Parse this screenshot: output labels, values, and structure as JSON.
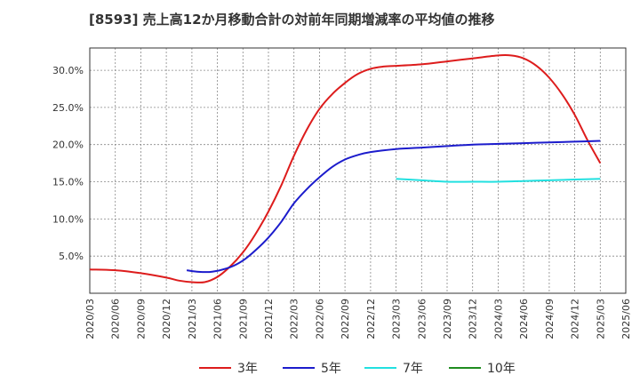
{
  "chart_data": {
    "type": "line",
    "title": "[8593]  売上高12か月移動合計の対前年同期増減率の平均値の推移",
    "xlabel": "",
    "ylabel": "",
    "ylim": [
      0,
      0.33
    ],
    "yticks": [
      0.05,
      0.1,
      0.15,
      0.2,
      0.25,
      0.3
    ],
    "ytick_labels": [
      "5.0%",
      "10.0%",
      "15.0%",
      "20.0%",
      "25.0%",
      "30.0%"
    ],
    "x_categories": [
      "2020/03",
      "2020/06",
      "2020/09",
      "2020/12",
      "2021/03",
      "2021/06",
      "2021/09",
      "2021/12",
      "2022/03",
      "2022/06",
      "2022/09",
      "2022/12",
      "2023/03",
      "2023/06",
      "2023/09",
      "2023/12",
      "2024/03",
      "2024/06",
      "2024/09",
      "2024/12",
      "2025/03",
      "2025/06"
    ],
    "series": [
      {
        "name": "3年",
        "color": "#dd1c1c",
        "values": [
          [
            0,
            0.032
          ],
          [
            1,
            0.031
          ],
          [
            2,
            0.027
          ],
          [
            3,
            0.021
          ],
          [
            3.5,
            0.017
          ],
          [
            4,
            0.015
          ],
          [
            4.5,
            0.015
          ],
          [
            5,
            0.022
          ],
          [
            5.5,
            0.036
          ],
          [
            6,
            0.055
          ],
          [
            6.5,
            0.08
          ],
          [
            7,
            0.11
          ],
          [
            7.5,
            0.145
          ],
          [
            8,
            0.185
          ],
          [
            8.5,
            0.22
          ],
          [
            9,
            0.248
          ],
          [
            9.5,
            0.268
          ],
          [
            10,
            0.283
          ],
          [
            10.5,
            0.295
          ],
          [
            11,
            0.302
          ],
          [
            11.5,
            0.305
          ],
          [
            12,
            0.306
          ],
          [
            13,
            0.308
          ],
          [
            14,
            0.312
          ],
          [
            15,
            0.316
          ],
          [
            16,
            0.32
          ],
          [
            16.5,
            0.32
          ],
          [
            17,
            0.316
          ],
          [
            17.5,
            0.306
          ],
          [
            18,
            0.29
          ],
          [
            18.5,
            0.268
          ],
          [
            19,
            0.24
          ],
          [
            19.5,
            0.206
          ],
          [
            20,
            0.175
          ]
        ]
      },
      {
        "name": "5年",
        "color": "#1c1ccc",
        "values": [
          [
            3.8,
            0.031
          ],
          [
            4.2,
            0.029
          ],
          [
            4.8,
            0.029
          ],
          [
            5.5,
            0.035
          ],
          [
            6,
            0.044
          ],
          [
            6.5,
            0.058
          ],
          [
            7,
            0.075
          ],
          [
            7.5,
            0.096
          ],
          [
            8,
            0.121
          ],
          [
            8.5,
            0.14
          ],
          [
            9,
            0.156
          ],
          [
            9.5,
            0.17
          ],
          [
            10,
            0.18
          ],
          [
            10.5,
            0.186
          ],
          [
            11,
            0.19
          ],
          [
            12,
            0.194
          ],
          [
            13,
            0.196
          ],
          [
            14,
            0.198
          ],
          [
            15,
            0.2
          ],
          [
            16,
            0.201
          ],
          [
            17,
            0.202
          ],
          [
            18,
            0.203
          ],
          [
            19,
            0.204
          ],
          [
            20,
            0.205
          ]
        ]
      },
      {
        "name": "7年",
        "color": "#22e0e0",
        "values": [
          [
            12,
            0.154
          ],
          [
            13,
            0.152
          ],
          [
            14,
            0.15
          ],
          [
            15,
            0.15
          ],
          [
            16,
            0.15
          ],
          [
            17,
            0.151
          ],
          [
            18,
            0.152
          ],
          [
            19,
            0.153
          ],
          [
            20,
            0.154
          ]
        ]
      },
      {
        "name": "10年",
        "color": "#1f8c1f",
        "values": []
      }
    ],
    "grid": true,
    "legend_position": "bottom"
  }
}
